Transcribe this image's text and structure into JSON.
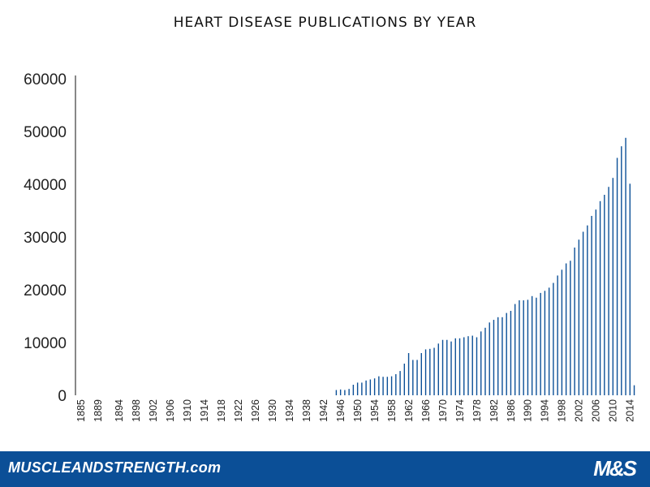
{
  "chart_data": {
    "type": "bar",
    "title": "HEART DISEASE PUBLICATIONS BY YEAR",
    "xlabel": "",
    "ylabel": "",
    "ylim": [
      0,
      60000
    ],
    "y_ticks": [
      "0",
      "10000",
      "20000",
      "30000",
      "40000",
      "50000",
      "60000"
    ],
    "x_tick_labels": [
      "1885",
      "1889",
      "1894",
      "1898",
      "1902",
      "1906",
      "1910",
      "1914",
      "1918",
      "1922",
      "1926",
      "1930",
      "1934",
      "1938",
      "1942",
      "1946",
      "1950",
      "1954",
      "1958",
      "1962",
      "1966",
      "1970",
      "1974",
      "1978",
      "1982",
      "1986",
      "1990",
      "1994",
      "1998",
      "2002",
      "2006",
      "2010",
      "2014"
    ],
    "grid": false,
    "legend": "none",
    "bar_color": "#0b4f97",
    "categories": [
      "1945",
      "1946",
      "1947",
      "1948",
      "1949",
      "1950",
      "1951",
      "1952",
      "1953",
      "1954",
      "1955",
      "1956",
      "1957",
      "1958",
      "1959",
      "1960",
      "1961",
      "1962",
      "1963",
      "1964",
      "1965",
      "1966",
      "1967",
      "1968",
      "1969",
      "1970",
      "1971",
      "1972",
      "1973",
      "1974",
      "1975",
      "1976",
      "1977",
      "1978",
      "1979",
      "1980",
      "1981",
      "1982",
      "1983",
      "1984",
      "1985",
      "1986",
      "1987",
      "1988",
      "1989",
      "1990",
      "1991",
      "1992",
      "1993",
      "1994",
      "1995",
      "1996",
      "1997",
      "1998",
      "1999",
      "2000",
      "2001",
      "2002",
      "2003",
      "2004",
      "2005",
      "2006",
      "2007",
      "2008",
      "2009",
      "2010",
      "2011",
      "2012",
      "2013",
      "2014",
      "2015"
    ],
    "values": [
      1000,
      1100,
      1000,
      1200,
      2000,
      2400,
      2400,
      2800,
      3000,
      3200,
      3600,
      3500,
      3500,
      3600,
      4000,
      4600,
      6000,
      8000,
      6700,
      6700,
      8000,
      8700,
      8800,
      9000,
      9800,
      10500,
      10500,
      10200,
      10800,
      10800,
      11000,
      11200,
      11300,
      11000,
      12100,
      12800,
      13800,
      14300,
      14800,
      14800,
      15600,
      16000,
      17300,
      18000,
      18000,
      18100,
      18800,
      18500,
      19400,
      19800,
      20400,
      21300,
      22700,
      23800,
      25000,
      25500,
      28000,
      29500,
      31000,
      32200,
      34000,
      35200,
      36800,
      38000,
      39500,
      41200,
      45000,
      47200,
      48800,
      40100,
      1900
    ]
  },
  "footer": {
    "site": "MUSCLEANDSTRENGTH.com",
    "logo": "M&S"
  }
}
